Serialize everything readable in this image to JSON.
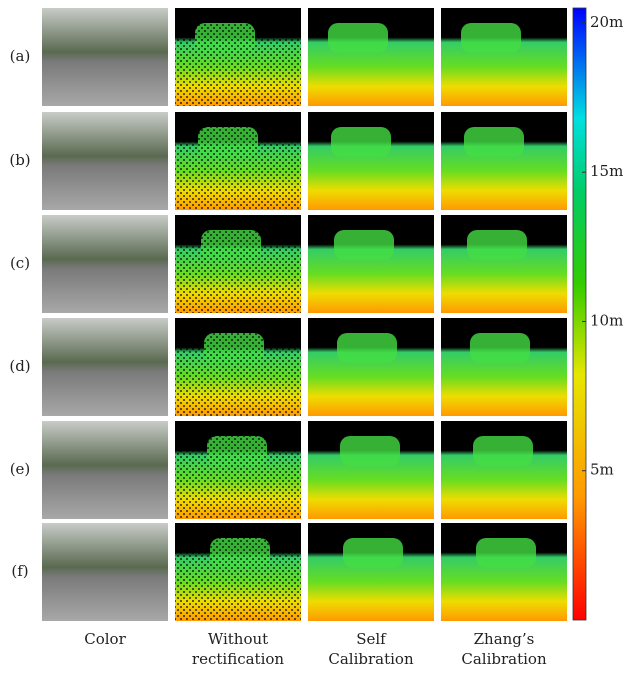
{
  "figure": {
    "rows": [
      "(a)",
      "(b)",
      "(c)",
      "(d)",
      "(e)",
      "(f)"
    ],
    "columns": [
      [
        "Color"
      ],
      [
        "Without",
        "rectification"
      ],
      [
        "Self",
        "Calibration"
      ],
      [
        "Zhang’s",
        "Calibration"
      ]
    ],
    "colorbar": {
      "range": [
        0,
        20.5
      ],
      "ticks": [
        {
          "value": 20,
          "label": "20m"
        },
        {
          "value": 15,
          "label": "15m"
        },
        {
          "value": 10,
          "label": "10m"
        },
        {
          "value": 5,
          "label": "5m"
        }
      ]
    }
  }
}
